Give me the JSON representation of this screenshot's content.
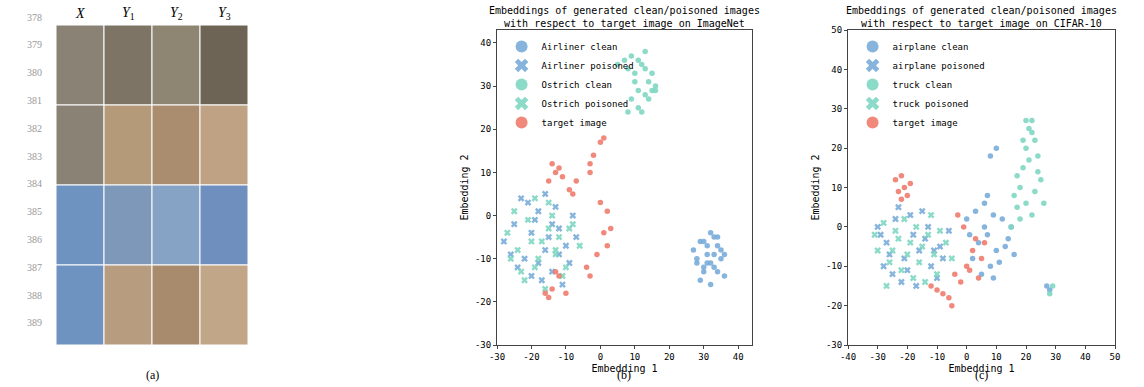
{
  "line_numbers": [
    378,
    379,
    380,
    381,
    382,
    383,
    384,
    385,
    386,
    387,
    388,
    389
  ],
  "panel_a": {
    "columns": [
      {
        "text": "X"
      },
      {
        "text": "Y",
        "sub": "1"
      },
      {
        "text": "Y",
        "sub": "2"
      },
      {
        "text": "Y",
        "sub": "3"
      }
    ],
    "label": "(a)"
  },
  "chart_data": [
    {
      "type": "scatter",
      "title": "Embeddings of generated clean/poisoned images\nwith respect to target image on ImageNet",
      "x_label": "Embedding 1",
      "y_label": "Embedding 2",
      "panel_label": "(b)",
      "xlim": [
        -30,
        44
      ],
      "ylim": [
        -30,
        43
      ],
      "xticks": [
        -30,
        -20,
        -10,
        0,
        10,
        20,
        30,
        40
      ],
      "yticks": [
        -30,
        -20,
        -10,
        0,
        10,
        20,
        30,
        40
      ],
      "grid": false,
      "legend": "upper left",
      "series": [
        {
          "name": "Airliner clean",
          "color": "#79acd9",
          "marker": "circle",
          "x": [
            27,
            28,
            29,
            30,
            31,
            32,
            33,
            34,
            35,
            36,
            29,
            31,
            33,
            35,
            30,
            32,
            34,
            28,
            36,
            31,
            33,
            30,
            34,
            32
          ],
          "y": [
            -8,
            -11,
            -6,
            -13,
            -9,
            -4,
            -12,
            -7,
            -10,
            -14,
            -15,
            -11,
            -5,
            -8,
            -6,
            -16,
            -13,
            -10,
            -9,
            -7,
            -9,
            -12,
            -5,
            -11
          ]
        },
        {
          "name": "Airliner poisoned",
          "color": "#79acd9",
          "marker": "x",
          "x": [
            -28,
            -25,
            -22,
            -20,
            -18,
            -16,
            -14,
            -12,
            -10,
            -8,
            -24,
            -21,
            -17,
            -13,
            -9,
            -26,
            -19,
            -15,
            -11,
            -7,
            -23,
            -18,
            -14,
            -20,
            -16,
            -12
          ],
          "y": [
            -6,
            -2,
            -10,
            -4,
            1,
            -8,
            -13,
            -3,
            -7,
            0,
            -12,
            3,
            -15,
            2,
            -11,
            -9,
            -1,
            -5,
            -16,
            -5,
            4,
            -11,
            -2,
            -14,
            5,
            -9
          ]
        },
        {
          "name": "Ostrich clean",
          "color": "#7fd6c2",
          "marker": "circle",
          "x": [
            5,
            7,
            8,
            9,
            10,
            11,
            12,
            13,
            14,
            15,
            16,
            9,
            11,
            13,
            8,
            10,
            12,
            14,
            15,
            16,
            11,
            13
          ],
          "y": [
            35,
            36,
            34,
            37,
            33,
            36,
            35,
            38,
            31,
            29,
            30,
            27,
            25,
            28,
            24,
            31,
            24,
            27,
            33,
            29,
            29,
            34
          ]
        },
        {
          "name": "Ostrich poisoned",
          "color": "#7fd6c2",
          "marker": "x",
          "x": [
            -27,
            -24,
            -21,
            -19,
            -17,
            -15,
            -13,
            -11,
            -9,
            -6,
            -25,
            -22,
            -18,
            -14,
            -10,
            -26,
            -20,
            -16,
            -12,
            -8,
            -23,
            -19,
            -15,
            -13
          ],
          "y": [
            -4,
            -8,
            -1,
            -12,
            -6,
            3,
            -9,
            -14,
            -3,
            -7,
            1,
            -15,
            -10,
            0,
            -12,
            -10,
            -6,
            -17,
            -5,
            -2,
            -13,
            4,
            -3,
            -8
          ]
        },
        {
          "name": "target image",
          "color": "#f07b6e",
          "marker": "circle",
          "x": [
            -14,
            -13,
            -15,
            -11,
            -12,
            -9,
            -8,
            -7,
            -3,
            -2,
            -3,
            0,
            1,
            0,
            2,
            1,
            2,
            -1,
            -10,
            -14,
            -15,
            -16,
            -4,
            -3,
            3,
            -12,
            -13
          ],
          "y": [
            12,
            10,
            8,
            9,
            11,
            6,
            5,
            8,
            10,
            14,
            12,
            17,
            18,
            3,
            1,
            -4,
            -7,
            -9,
            -18,
            -17,
            -19,
            -18,
            -12,
            -14,
            -3,
            -14,
            -13
          ]
        }
      ]
    },
    {
      "type": "scatter",
      "title": "Embeddings of generated clean/poisoned images\nwith respect to target image on CIFAR-10",
      "x_label": "Embedding 1",
      "y_label": "Embedding 2",
      "panel_label": "(c)",
      "xlim": [
        -40,
        50
      ],
      "ylim": [
        -30,
        50
      ],
      "xticks": [
        -40,
        -30,
        -20,
        -10,
        0,
        10,
        20,
        30,
        40,
        50
      ],
      "yticks": [
        -30,
        -20,
        -10,
        0,
        10,
        20,
        30,
        40,
        50
      ],
      "grid": false,
      "legend": "upper left",
      "series": [
        {
          "name": "airplane clean",
          "color": "#79acd9",
          "marker": "circle",
          "x": [
            2,
            4,
            6,
            8,
            10,
            12,
            14,
            3,
            5,
            7,
            9,
            11,
            13,
            15,
            1,
            6,
            8,
            10,
            7,
            9,
            28,
            27,
            16,
            0
          ],
          "y": [
            -8,
            -4,
            0,
            -10,
            -6,
            2,
            -3,
            4,
            -12,
            -2,
            3,
            -9,
            -5,
            0,
            -2,
            6,
            18,
            20,
            8,
            -13,
            -16,
            -15,
            -7,
            2
          ]
        },
        {
          "name": "airplane poisoned",
          "color": "#79acd9",
          "marker": "x",
          "x": [
            -30,
            -27,
            -24,
            -21,
            -18,
            -15,
            -12,
            -9,
            -6,
            -28,
            -25,
            -22,
            -19,
            -16,
            -13,
            -10,
            -26,
            -20,
            -14,
            -8,
            -23,
            -17,
            -11,
            -29
          ],
          "y": [
            0,
            -4,
            2,
            -8,
            -2,
            4,
            -10,
            -5,
            -1,
            -10,
            -12,
            -14,
            3,
            -6,
            0,
            -13,
            -7,
            -11,
            -3,
            -8,
            5,
            -15,
            -6,
            -2
          ]
        },
        {
          "name": "truck clean",
          "color": "#7fd6c2",
          "marker": "circle",
          "x": [
            15,
            17,
            18,
            19,
            20,
            21,
            22,
            23,
            24,
            25,
            16,
            18,
            20,
            22,
            24,
            19,
            21,
            23,
            17,
            20,
            22,
            29,
            28,
            26
          ],
          "y": [
            0,
            5,
            10,
            15,
            20,
            25,
            27,
            22,
            18,
            12,
            8,
            2,
            6,
            3,
            14,
            22,
            17,
            9,
            13,
            27,
            24,
            -15,
            -17,
            6
          ]
        },
        {
          "name": "truck poisoned",
          "color": "#7fd6c2",
          "marker": "x",
          "x": [
            -31,
            -28,
            -25,
            -22,
            -19,
            -16,
            -13,
            -10,
            -7,
            -5,
            -27,
            -24,
            -21,
            -18,
            -15,
            -12,
            -26,
            -20,
            -14,
            -9,
            -23,
            -17,
            -11,
            -30
          ],
          "y": [
            -2,
            1,
            -6,
            -11,
            -4,
            -9,
            -2,
            -12,
            -4,
            -8,
            -15,
            -1,
            2,
            -13,
            -5,
            3,
            -9,
            -7,
            -14,
            -1,
            -3,
            0,
            -7,
            -6
          ]
        },
        {
          "name": "target image",
          "color": "#f07b6e",
          "marker": "circle",
          "x": [
            -24,
            -22,
            -21,
            -20,
            -23,
            -19,
            -22,
            -8,
            -6,
            -10,
            -12,
            -4,
            -2,
            0,
            2,
            3,
            5,
            -1,
            -3,
            4,
            1,
            -5,
            6
          ],
          "y": [
            12,
            13,
            10,
            8,
            9,
            11,
            7,
            -17,
            -18,
            -16,
            -15,
            -12,
            -14,
            -10,
            -6,
            -3,
            -8,
            0,
            3,
            -13,
            -11,
            -20,
            -4
          ]
        }
      ]
    }
  ]
}
